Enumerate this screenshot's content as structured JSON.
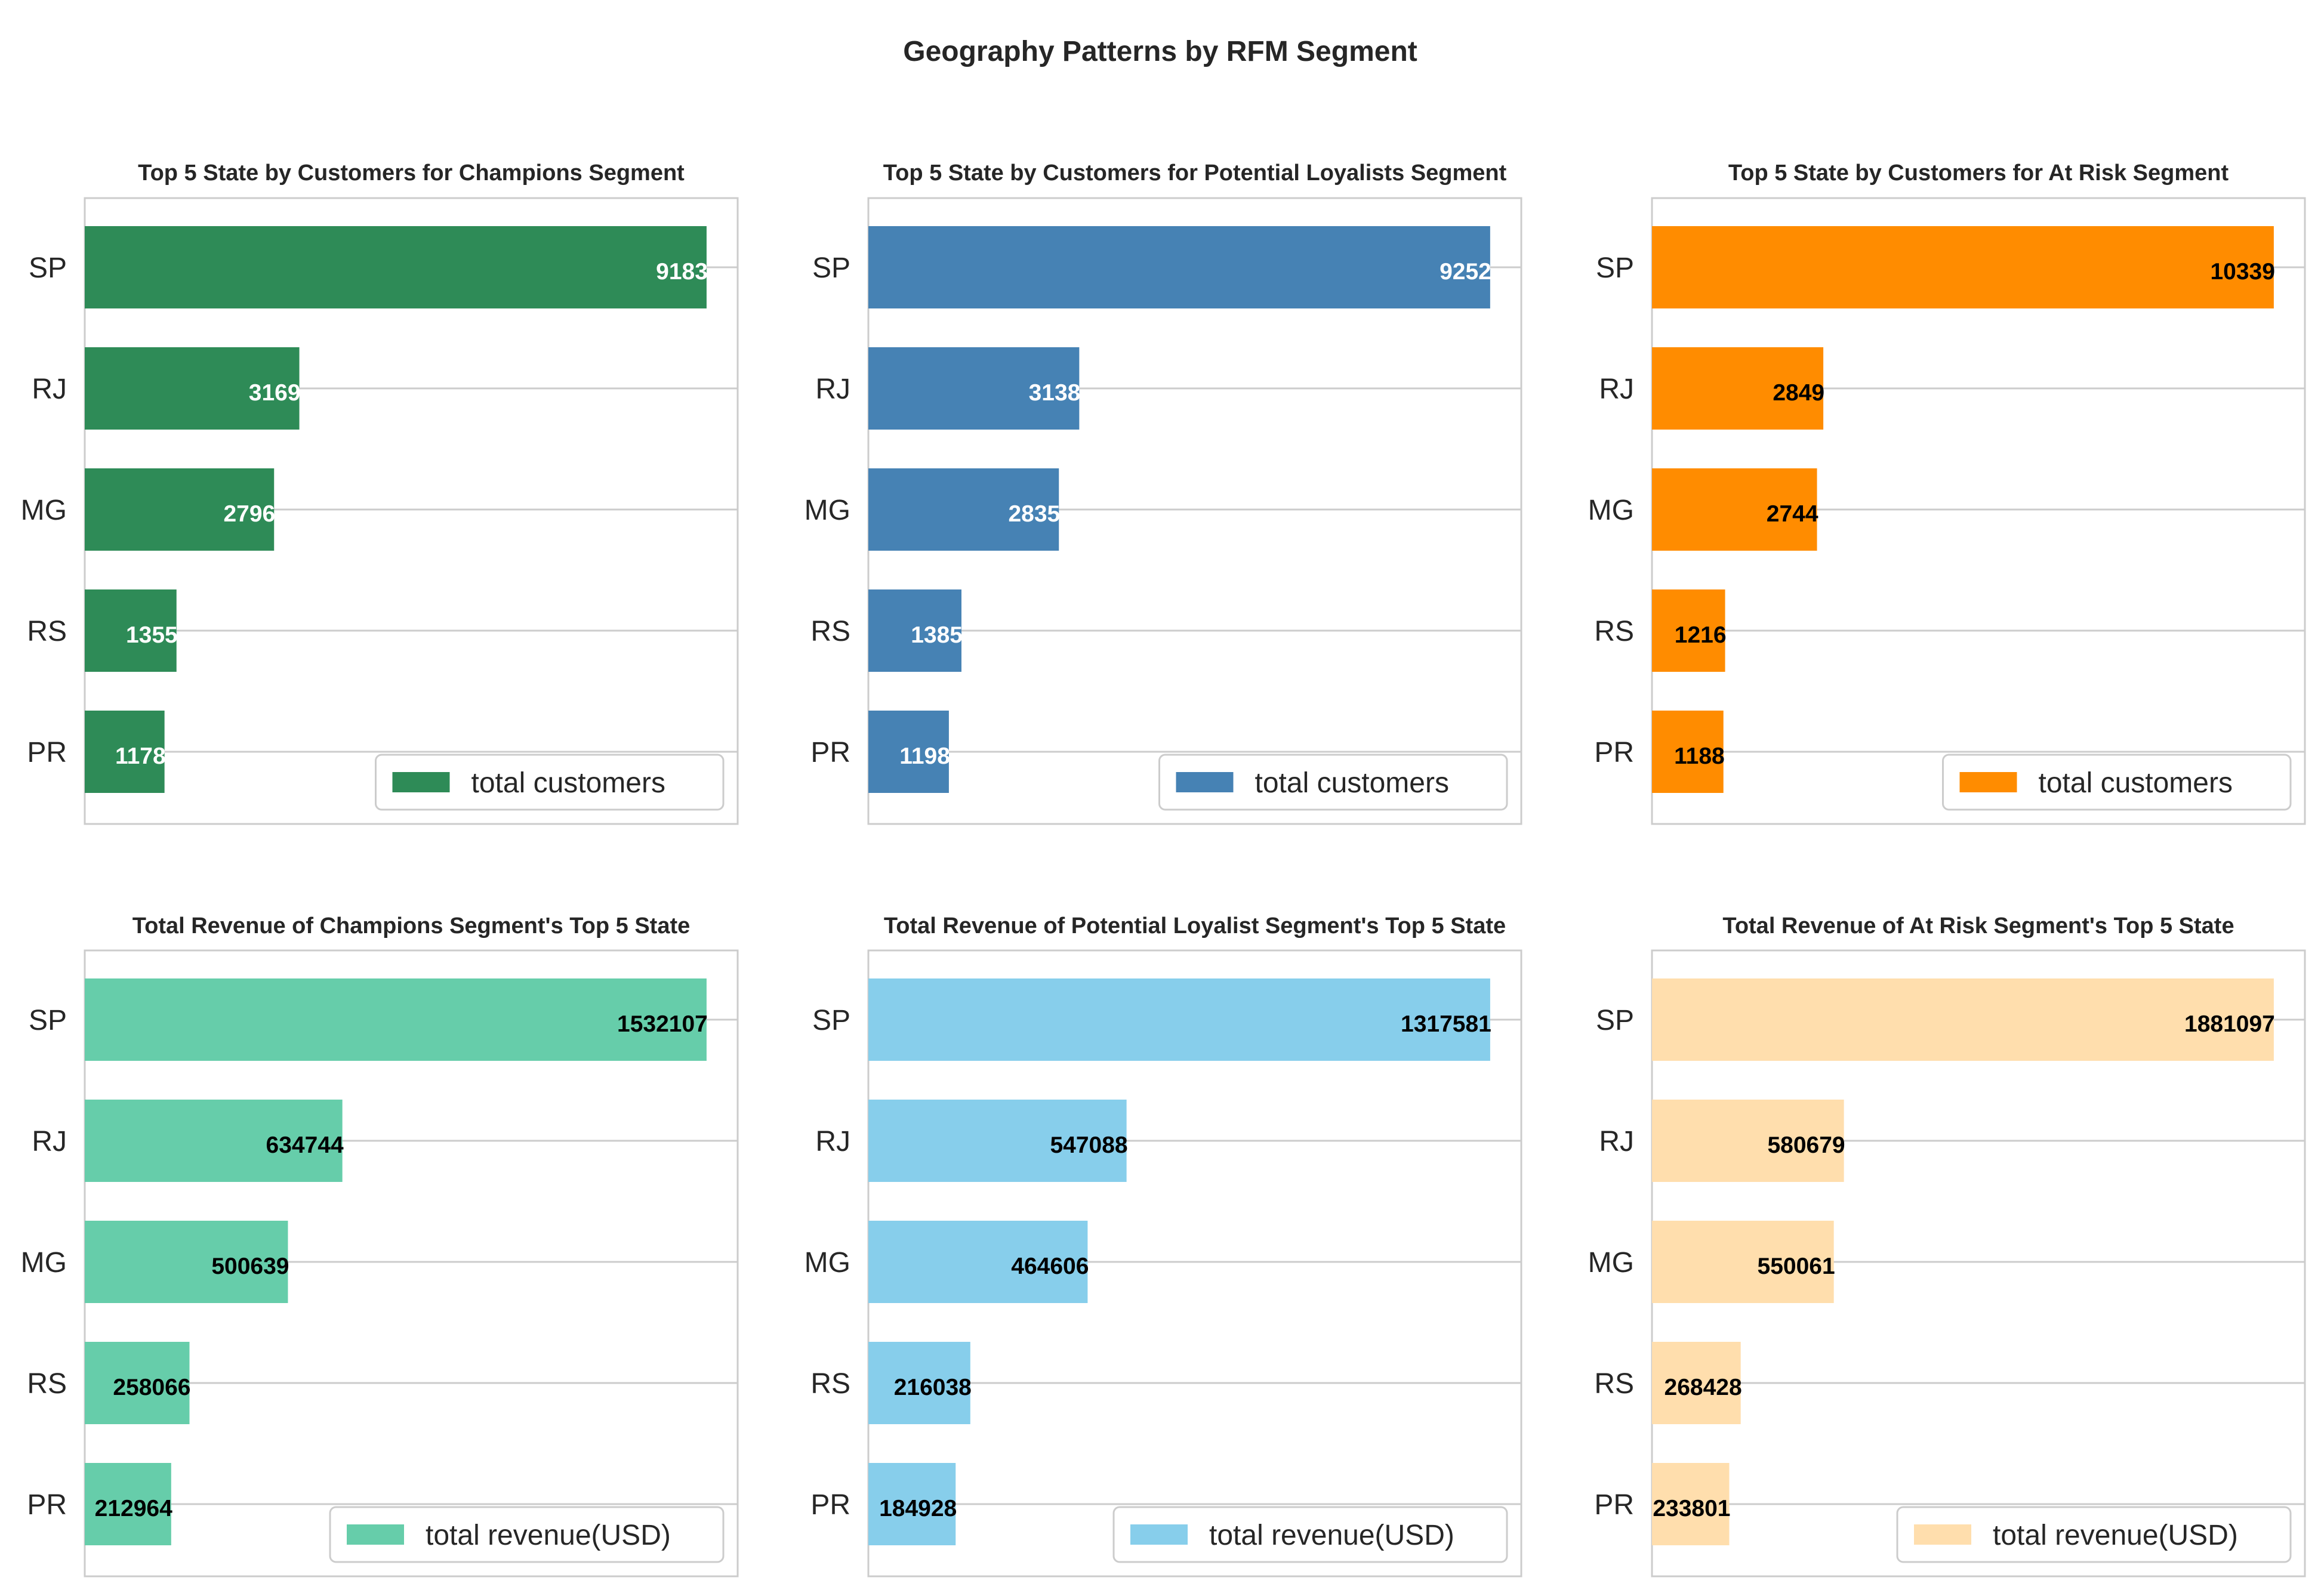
{
  "suptitle": "Geography Patterns by RFM Segment",
  "chart_data": [
    {
      "type": "bar",
      "orientation": "horizontal",
      "title": "Top 5 State by Customers for Champions Segment",
      "categories": [
        "SP",
        "RJ",
        "MG",
        "RS",
        "PR"
      ],
      "series": [
        {
          "name": "total customers",
          "values": [
            9183,
            3169,
            2796,
            1355,
            1178
          ]
        }
      ],
      "xlim": [
        0,
        9642
      ],
      "bar_color": "#2e8b57",
      "label_color": "#ffffff",
      "legend_position": "lower-right",
      "grid": "x-lines at category positions"
    },
    {
      "type": "bar",
      "orientation": "horizontal",
      "title": "Top 5 State by Customers for Potential Loyalists Segment",
      "categories": [
        "SP",
        "RJ",
        "MG",
        "RS",
        "PR"
      ],
      "series": [
        {
          "name": "total customers",
          "values": [
            9252,
            3138,
            2835,
            1385,
            1198
          ]
        }
      ],
      "xlim": [
        0,
        9715
      ],
      "bar_color": "#4682b4",
      "label_color": "#ffffff",
      "legend_position": "lower-right",
      "grid": "x-lines at category positions"
    },
    {
      "type": "bar",
      "orientation": "horizontal",
      "title": "Top 5 State by Customers for At Risk Segment",
      "categories": [
        "SP",
        "RJ",
        "MG",
        "RS",
        "PR"
      ],
      "series": [
        {
          "name": "total customers",
          "values": [
            10339,
            2849,
            2744,
            1216,
            1188
          ]
        }
      ],
      "xlim": [
        0,
        10856
      ],
      "bar_color": "#ff8c00",
      "label_color": "#000000",
      "legend_position": "lower-right",
      "grid": "x-lines at category positions"
    },
    {
      "type": "bar",
      "orientation": "horizontal",
      "title": "Total Revenue of Champions Segment's Top 5 State",
      "categories": [
        "SP",
        "RJ",
        "MG",
        "RS",
        "PR"
      ],
      "series": [
        {
          "name": "total revenue(USD)",
          "values": [
            1532107,
            634744,
            500639,
            258066,
            212964
          ]
        }
      ],
      "xlim": [
        0,
        1608712
      ],
      "bar_color": "#66cdaa",
      "label_color": "#000000",
      "legend_position": "lower-right",
      "grid": "x-lines at category positions"
    },
    {
      "type": "bar",
      "orientation": "horizontal",
      "title": "Total Revenue of Potential Loyalist Segment's Top 5 State",
      "categories": [
        "SP",
        "RJ",
        "MG",
        "RS",
        "PR"
      ],
      "series": [
        {
          "name": "total revenue(USD)",
          "values": [
            1317581,
            547088,
            464606,
            216038,
            184928
          ]
        }
      ],
      "xlim": [
        0,
        1383460
      ],
      "bar_color": "#87ceeb",
      "label_color": "#000000",
      "legend_position": "lower-right",
      "grid": "x-lines at category positions"
    },
    {
      "type": "bar",
      "orientation": "horizontal",
      "title": "Total Revenue of At Risk Segment's Top 5 State",
      "categories": [
        "SP",
        "RJ",
        "MG",
        "RS",
        "PR"
      ],
      "series": [
        {
          "name": "total revenue(USD)",
          "values": [
            1881097,
            580679,
            550061,
            268428,
            233801
          ]
        }
      ],
      "xlim": [
        0,
        1975152
      ],
      "bar_color": "#ffdead",
      "label_color": "#000000",
      "legend_position": "lower-right",
      "grid": "x-lines at category positions"
    }
  ]
}
